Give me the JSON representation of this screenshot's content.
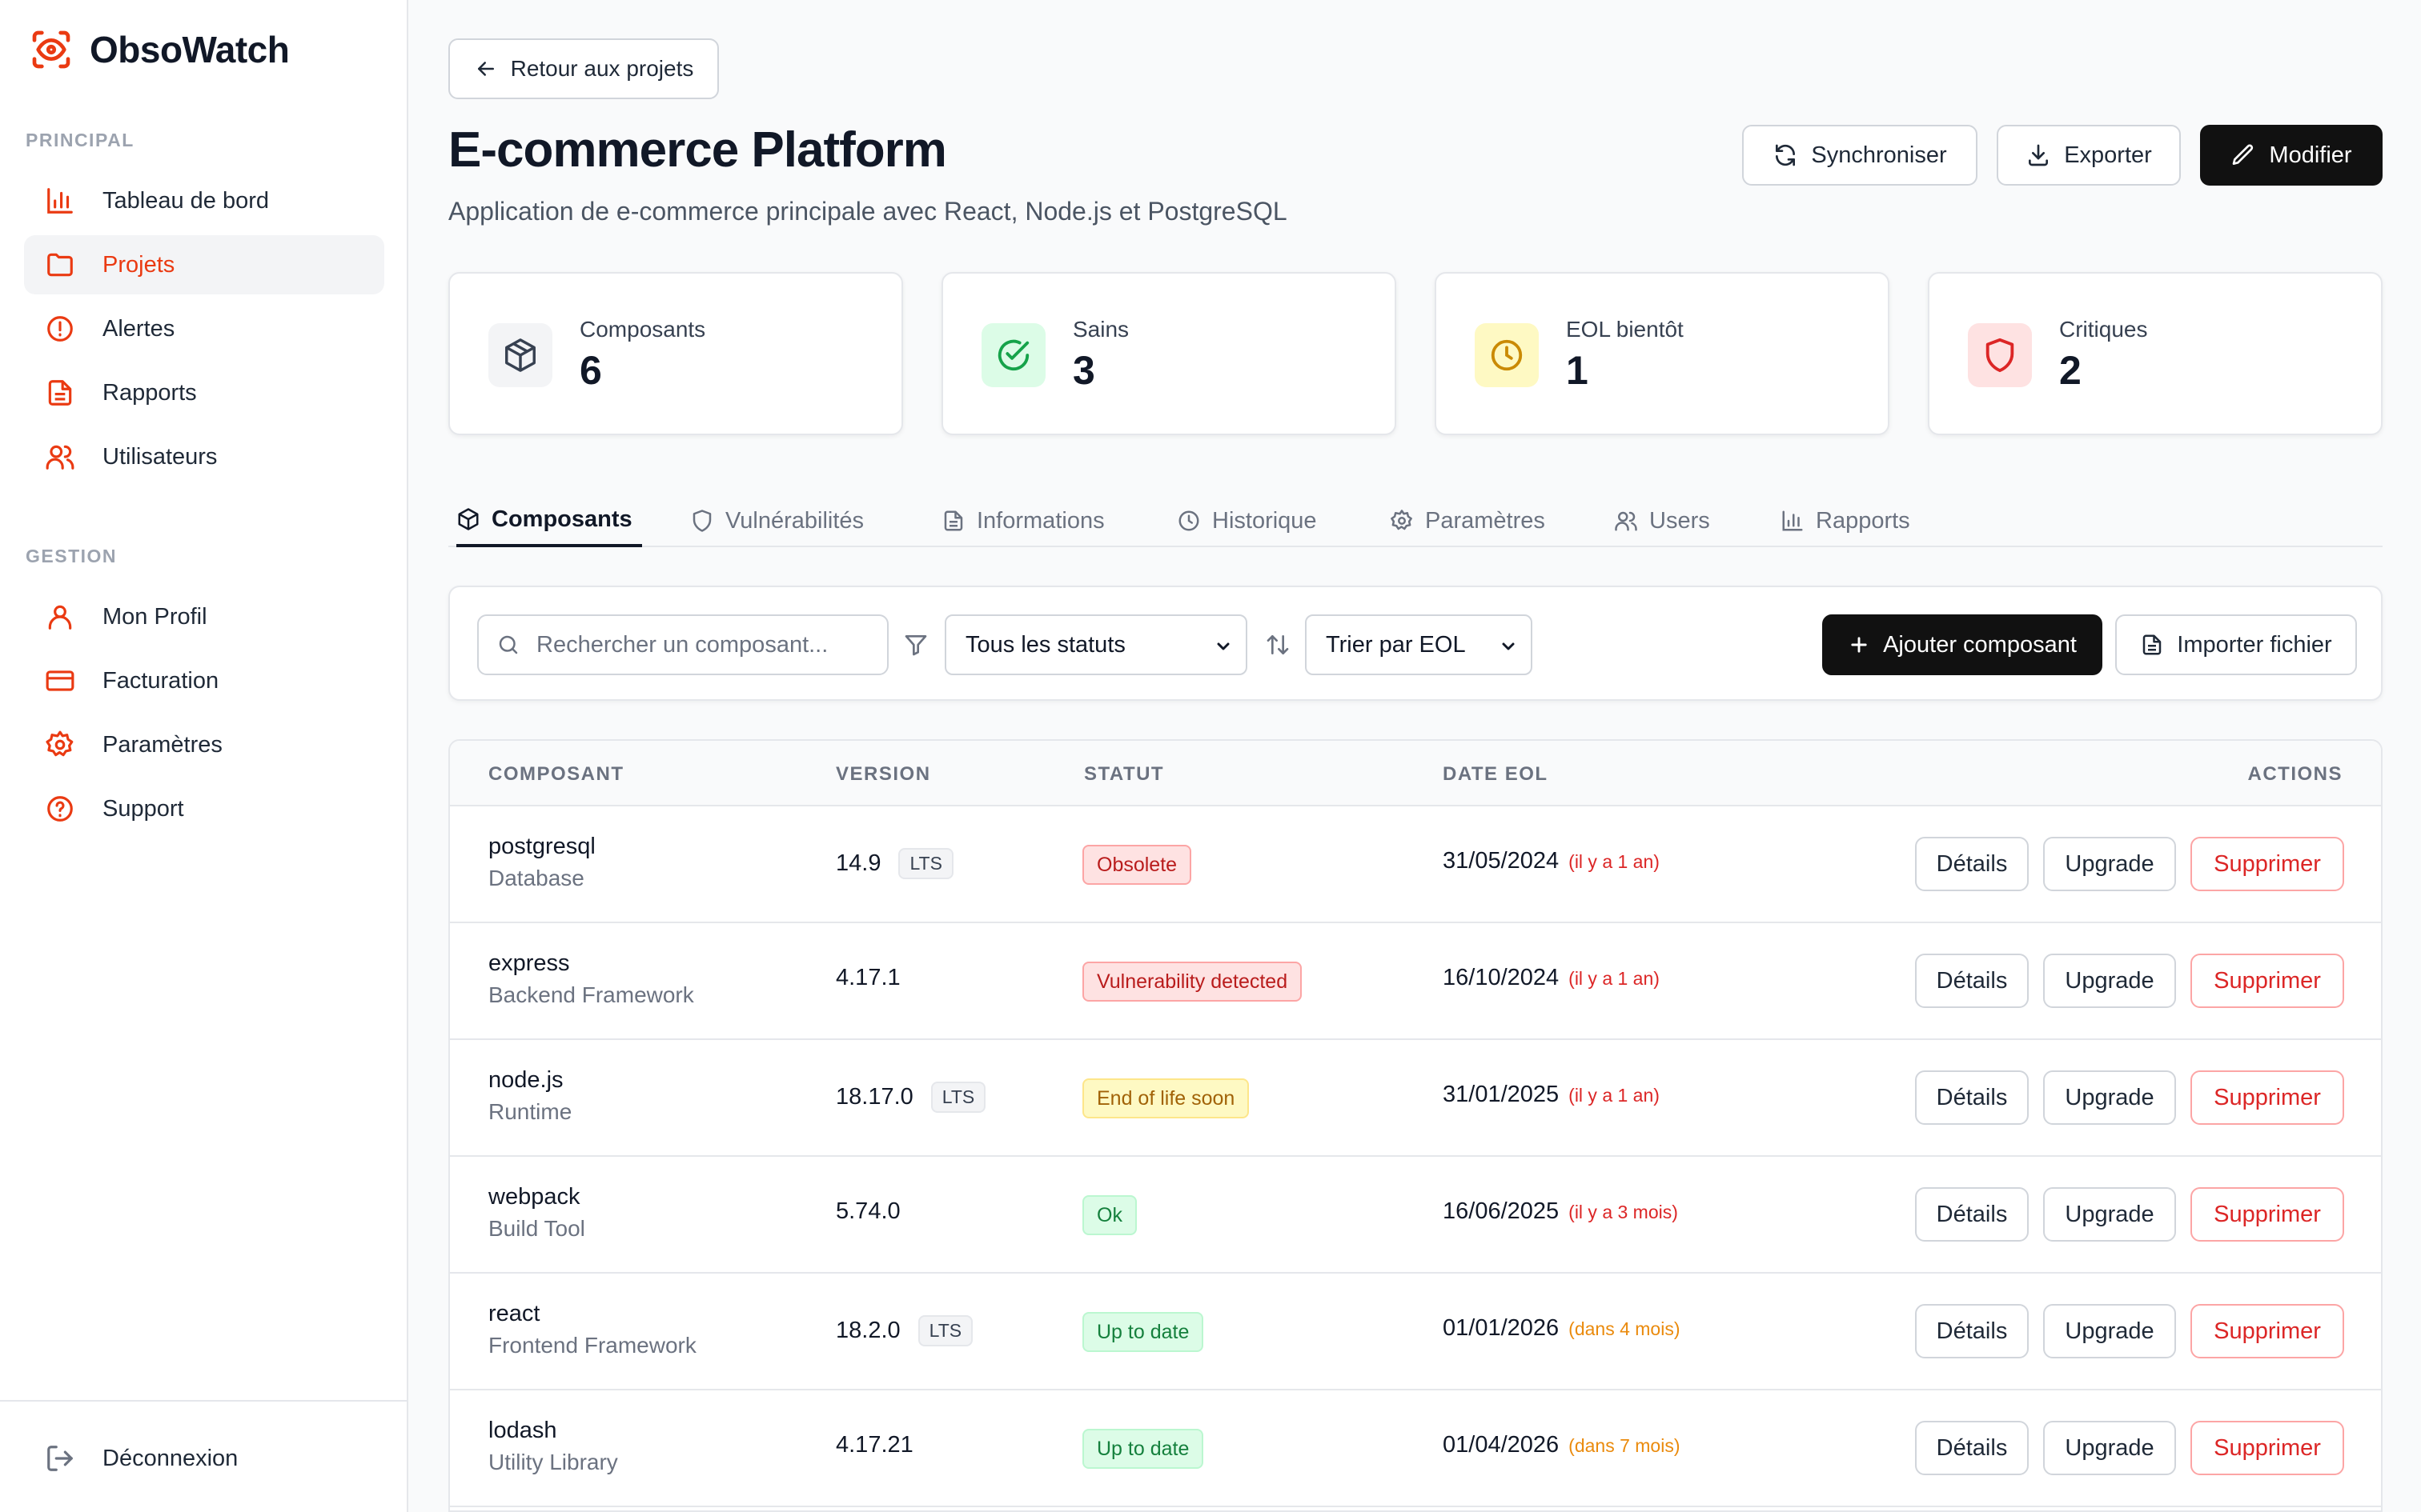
{
  "app": {
    "name": "ObsoWatch",
    "accent": "#ea3a12"
  },
  "sidebar": {
    "section_principal": "PRINCIPAL",
    "section_gestion": "GESTION",
    "items": [
      {
        "label": "Tableau de bord",
        "icon": "bar-chart-icon"
      },
      {
        "label": "Projets",
        "icon": "folder-icon",
        "active": true
      },
      {
        "label": "Alertes",
        "icon": "alert-circle-icon"
      },
      {
        "label": "Rapports",
        "icon": "file-text-icon"
      },
      {
        "label": "Utilisateurs",
        "icon": "users-icon"
      },
      {
        "label": "Mon Profil",
        "icon": "user-icon"
      },
      {
        "label": "Facturation",
        "icon": "credit-card-icon"
      },
      {
        "label": "Paramètres",
        "icon": "gear-icon"
      },
      {
        "label": "Support",
        "icon": "help-circle-icon"
      }
    ],
    "logout_label": "Déconnexion"
  },
  "header": {
    "back_label": "Retour aux projets",
    "title": "E-commerce Platform",
    "subtitle": "Application de e-commerce principale avec React, Node.js et PostgreSQL",
    "sync_label": "Synchroniser",
    "export_label": "Exporter",
    "edit_label": "Modifier"
  },
  "stats": [
    {
      "label": "Composants",
      "value": "6",
      "icon": "package-icon"
    },
    {
      "label": "Sains",
      "value": "3",
      "icon": "check-circle-icon"
    },
    {
      "label": "EOL bientôt",
      "value": "1",
      "icon": "clock-icon"
    },
    {
      "label": "Critiques",
      "value": "2",
      "icon": "shield-icon"
    }
  ],
  "tabs": [
    {
      "label": "Composants",
      "icon": "package-icon",
      "active": true
    },
    {
      "label": "Vulnérabilités",
      "icon": "shield-icon"
    },
    {
      "label": "Informations",
      "icon": "file-text-icon"
    },
    {
      "label": "Historique",
      "icon": "clock-icon"
    },
    {
      "label": "Paramètres",
      "icon": "gear-icon"
    },
    {
      "label": "Users",
      "icon": "users-icon"
    },
    {
      "label": "Rapports",
      "icon": "bar-chart-icon"
    }
  ],
  "toolbar": {
    "search_placeholder": "Rechercher un composant...",
    "status_filter": "Tous les statuts",
    "sort": "Trier par EOL",
    "add_label": "Ajouter composant",
    "import_label": "Importer fichier"
  },
  "table": {
    "columns": [
      "COMPOSANT",
      "VERSION",
      "STATUT",
      "DATE EOL",
      "ACTIONS"
    ],
    "action_details": "Détails",
    "action_upgrade": "Upgrade",
    "action_delete": "Supprimer",
    "rows": [
      {
        "name": "postgresql",
        "type": "Database",
        "version": "14.9",
        "lts": "LTS",
        "status": "Obsolete",
        "status_kind": "danger",
        "eol": "31/05/2024",
        "eol_rel": "(il y a 1 an)",
        "rel_kind": "past"
      },
      {
        "name": "express",
        "type": "Backend Framework",
        "version": "4.17.1",
        "lts": "",
        "status": "Vulnerability detected",
        "status_kind": "danger",
        "eol": "16/10/2024",
        "eol_rel": "(il y a 1 an)",
        "rel_kind": "past"
      },
      {
        "name": "node.js",
        "type": "Runtime",
        "version": "18.17.0",
        "lts": "LTS",
        "status": "End of life soon",
        "status_kind": "warn",
        "eol": "31/01/2025",
        "eol_rel": "(il y a 1 an)",
        "rel_kind": "past"
      },
      {
        "name": "webpack",
        "type": "Build Tool",
        "version": "5.74.0",
        "lts": "",
        "status": "Ok",
        "status_kind": "ok",
        "eol": "16/06/2025",
        "eol_rel": "(il y a 3 mois)",
        "rel_kind": "past"
      },
      {
        "name": "react",
        "type": "Frontend Framework",
        "version": "18.2.0",
        "lts": "LTS",
        "status": "Up to date",
        "status_kind": "ok",
        "eol": "01/01/2026",
        "eol_rel": "(dans 4 mois)",
        "rel_kind": "future"
      },
      {
        "name": "lodash",
        "type": "Utility Library",
        "version": "4.17.21",
        "lts": "",
        "status": "Up to date",
        "status_kind": "ok",
        "eol": "01/04/2026",
        "eol_rel": "(dans 7 mois)",
        "rel_kind": "future"
      }
    ]
  }
}
